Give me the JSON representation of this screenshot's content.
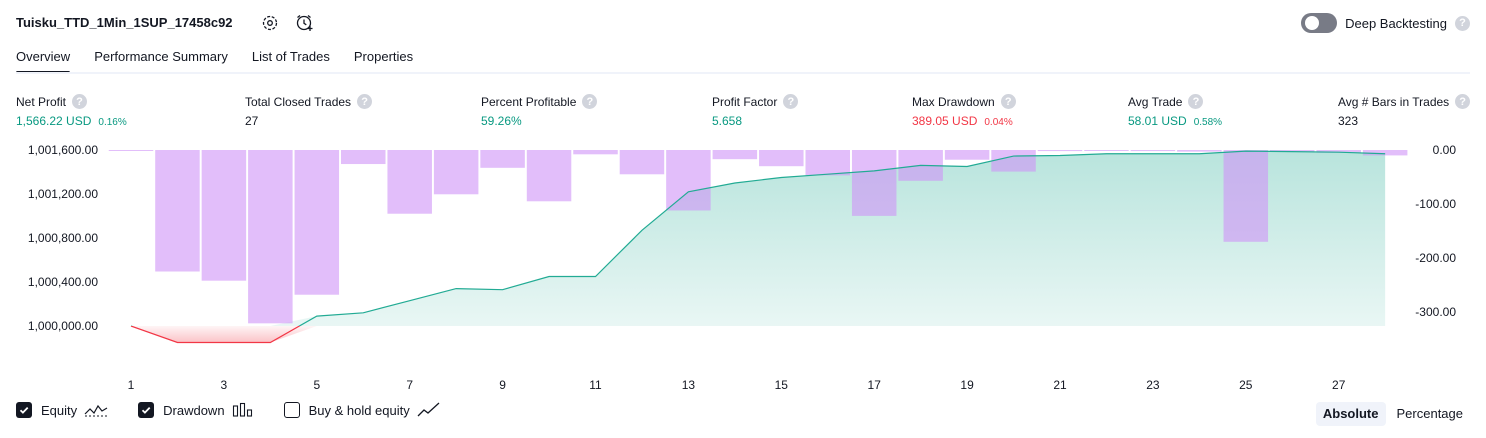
{
  "header": {
    "strategy_name": "Tuisku_TTD_1Min_1SUP_17458c92",
    "deep_backtesting_label": "Deep Backtesting",
    "help_glyph": "?"
  },
  "tabs": [
    {
      "label": "Overview"
    },
    {
      "label": "Performance Summary"
    },
    {
      "label": "List of Trades"
    },
    {
      "label": "Properties"
    }
  ],
  "metrics": {
    "net_profit": {
      "label": "Net Profit",
      "value": "1,566.22 USD",
      "pct": "0.16%"
    },
    "total_closed_trades": {
      "label": "Total Closed Trades",
      "value": "27"
    },
    "percent_profitable": {
      "label": "Percent Profitable",
      "value": "59.26%"
    },
    "profit_factor": {
      "label": "Profit Factor",
      "value": "5.658"
    },
    "max_drawdown": {
      "label": "Max Drawdown",
      "value": "389.05 USD",
      "pct": "0.04%"
    },
    "avg_trade": {
      "label": "Avg Trade",
      "value": "58.01 USD",
      "pct": "0.58%"
    },
    "avg_bars": {
      "label": "Avg # Bars in Trades",
      "value": "323"
    }
  },
  "colors": {
    "equity_line": "#22ab94",
    "drawdown_bar": "#ce93f7",
    "positive": "#089981",
    "negative": "#f23645"
  },
  "chart_data": {
    "type": "area",
    "x_ticks": [
      "1",
      "3",
      "5",
      "7",
      "9",
      "11",
      "13",
      "15",
      "17",
      "19",
      "21",
      "23",
      "25",
      "27"
    ],
    "left_axis": {
      "ticks": [
        "1,001,600.00",
        "1,001,200.00",
        "1,000,800.00",
        "1,000,400.00",
        "1,000,000.00"
      ],
      "ylim": [
        999860,
        1001620
      ]
    },
    "right_axis": {
      "ticks": [
        "0.00",
        "-100.00",
        "-200.00",
        "-300.00"
      ],
      "ylim": [
        -389,
        0
      ]
    },
    "equity": {
      "x": [
        1,
        2,
        3,
        4,
        5,
        6,
        7,
        8,
        9,
        10,
        11,
        12,
        13,
        14,
        15,
        16,
        17,
        18,
        19,
        20,
        21,
        22,
        23,
        24,
        25,
        26,
        27,
        28
      ],
      "values": [
        1000000,
        999850,
        999850,
        999850,
        1000090,
        1000120,
        1000230,
        1000340,
        1000330,
        1000450,
        1000450,
        1000870,
        1001220,
        1001300,
        1001350,
        1001380,
        1001410,
        1001460,
        1001450,
        1001545,
        1001550,
        1001566,
        1001566,
        1001566,
        1001590,
        1001585,
        1001580,
        1001566
      ]
    },
    "drawdown": {
      "x": [
        1,
        2,
        3,
        4,
        5,
        6,
        7,
        8,
        9,
        10,
        11,
        12,
        13,
        14,
        15,
        16,
        17,
        18,
        19,
        20,
        21,
        22,
        23,
        24,
        25,
        26,
        27,
        28
      ],
      "values": [
        -1,
        -225,
        -242,
        -321,
        -268,
        -26,
        -118,
        -82,
        -33,
        -95,
        -8,
        -45,
        -112,
        -17,
        -30,
        -47,
        -122,
        -57,
        -18,
        -40,
        -2,
        -1,
        -2,
        -3,
        -170,
        -3,
        -5,
        -10
      ]
    },
    "legend": {
      "equity_label": "Equity",
      "drawdown_label": "Drawdown",
      "buy_hold_label": "Buy & hold equity"
    },
    "modes": {
      "absolute": "Absolute",
      "percentage": "Percentage"
    }
  }
}
